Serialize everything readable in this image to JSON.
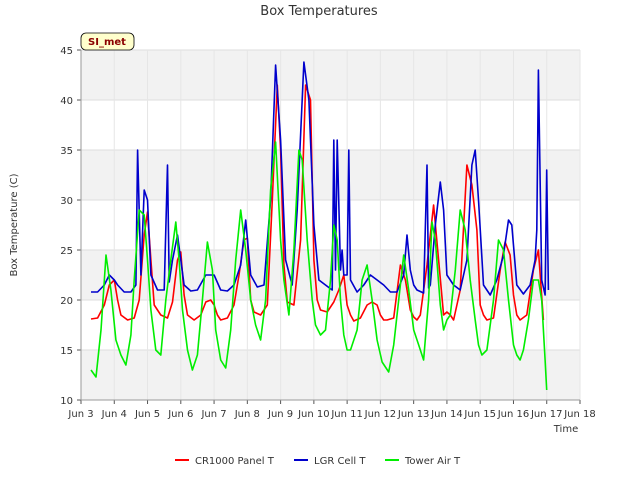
{
  "chart_data": {
    "type": "line",
    "title": "Box Temperatures",
    "xlabel": "Time",
    "ylabel": "Box Temperature (C)",
    "site_tag": "SI_met",
    "xlim": [
      3,
      18
    ],
    "ylim": [
      10,
      45
    ],
    "x_ticks": [
      3,
      4,
      5,
      6,
      7,
      8,
      9,
      10,
      11,
      12,
      13,
      14,
      15,
      16,
      17,
      18
    ],
    "x_tick_labels": [
      "Jun 3",
      "Jun 4",
      "Jun 5",
      "Jun 6",
      "Jun 7",
      "Jun 8",
      "Jun 9",
      "Jun 10",
      "Jun 11",
      "Jun 12",
      "Jun 13",
      "Jun 14",
      "Jun 15",
      "Jun 16",
      "Jun 17",
      "Jun 18"
    ],
    "y_ticks": [
      10,
      15,
      20,
      25,
      30,
      35,
      40,
      45
    ],
    "y_tick_labels": [
      "10",
      "15",
      "20",
      "25",
      "30",
      "35",
      "40",
      "45"
    ],
    "grid": true,
    "legend_position": "bottom-center",
    "series": [
      {
        "name": "CR1000 Panel T",
        "color": "#ff0000",
        "x": [
          3.3,
          3.5,
          3.7,
          3.85,
          4.0,
          4.1,
          4.2,
          4.4,
          4.6,
          4.75,
          4.9,
          5.0,
          5.1,
          5.2,
          5.4,
          5.6,
          5.75,
          5.9,
          6.0,
          6.1,
          6.2,
          6.4,
          6.6,
          6.75,
          6.9,
          7.0,
          7.1,
          7.2,
          7.4,
          7.6,
          7.75,
          7.9,
          8.0,
          8.1,
          8.2,
          8.4,
          8.6,
          8.75,
          8.9,
          9.0,
          9.1,
          9.2,
          9.4,
          9.6,
          9.75,
          9.9,
          10.0,
          10.1,
          10.2,
          10.4,
          10.6,
          10.75,
          10.9,
          11.0,
          11.1,
          11.2,
          11.4,
          11.6,
          11.75,
          11.9,
          12.0,
          12.1,
          12.2,
          12.4,
          12.6,
          12.75,
          12.9,
          13.0,
          13.1,
          13.2,
          13.4,
          13.6,
          13.75,
          13.9,
          14.0,
          14.1,
          14.2,
          14.4,
          14.6,
          14.75,
          14.9,
          15.0,
          15.1,
          15.2,
          15.4,
          15.6,
          15.75,
          15.9,
          16.0,
          16.1,
          16.2,
          16.4,
          16.6,
          16.75,
          16.9
        ],
        "values": [
          18.1,
          18.2,
          19.5,
          21.5,
          22.0,
          20.0,
          18.5,
          18.0,
          18.2,
          20.0,
          26.5,
          28.8,
          24.0,
          19.5,
          18.5,
          18.2,
          19.8,
          24.0,
          24.8,
          20.5,
          18.5,
          18.0,
          18.5,
          19.8,
          20.0,
          19.5,
          18.5,
          18.0,
          18.2,
          19.5,
          22.5,
          26.0,
          26.2,
          20.0,
          18.8,
          18.5,
          19.5,
          30.0,
          41.5,
          35.0,
          23.5,
          19.8,
          19.5,
          26.0,
          41.5,
          40.0,
          24.0,
          20.0,
          19.0,
          18.8,
          19.8,
          21.0,
          22.5,
          19.5,
          18.5,
          17.9,
          18.2,
          19.5,
          19.8,
          19.5,
          18.5,
          18.0,
          18.0,
          18.2,
          23.5,
          22.0,
          19.0,
          18.3,
          18.0,
          18.5,
          23.5,
          29.5,
          24.0,
          18.5,
          18.8,
          18.5,
          18.0,
          21.0,
          33.5,
          31.5,
          27.0,
          19.5,
          18.5,
          18.0,
          18.2,
          23.0,
          25.8,
          24.5,
          20.5,
          18.5,
          18.0,
          18.5,
          23.0,
          25.0,
          18.0
        ]
      },
      {
        "name": "LGR Cell T",
        "color": "#0000cc",
        "x": [
          3.3,
          3.5,
          3.7,
          3.85,
          4.0,
          4.1,
          4.3,
          4.5,
          4.65,
          4.7,
          4.8,
          4.9,
          5.0,
          5.1,
          5.3,
          5.5,
          5.6,
          5.65,
          5.75,
          5.9,
          6.0,
          6.1,
          6.3,
          6.5,
          6.75,
          7.0,
          7.2,
          7.4,
          7.6,
          7.8,
          7.95,
          8.1,
          8.3,
          8.5,
          8.7,
          8.85,
          9.0,
          9.15,
          9.35,
          9.5,
          9.7,
          9.85,
          10.0,
          10.15,
          10.35,
          10.55,
          10.6,
          10.65,
          10.7,
          10.8,
          10.85,
          10.9,
          11.0,
          11.05,
          11.1,
          11.3,
          11.5,
          11.7,
          11.9,
          12.1,
          12.3,
          12.5,
          12.7,
          12.8,
          12.9,
          13.0,
          13.1,
          13.3,
          13.4,
          13.45,
          13.5,
          13.65,
          13.8,
          13.9,
          14.0,
          14.2,
          14.4,
          14.6,
          14.75,
          14.85,
          14.95,
          15.1,
          15.3,
          15.5,
          15.7,
          15.85,
          15.95,
          16.1,
          16.3,
          16.5,
          16.65,
          16.7,
          16.75,
          16.85,
          16.95,
          17.0,
          17.05
        ],
        "values": [
          20.8,
          20.8,
          21.5,
          22.5,
          22.0,
          21.5,
          20.8,
          20.8,
          21.5,
          35.0,
          22.5,
          31.0,
          30.0,
          22.5,
          21.0,
          21.0,
          33.5,
          21.8,
          24.0,
          26.5,
          24.0,
          21.5,
          20.9,
          21.0,
          22.5,
          22.5,
          21.0,
          20.9,
          21.5,
          23.5,
          28.0,
          22.5,
          21.3,
          21.5,
          30.0,
          43.5,
          36.0,
          24.0,
          21.5,
          29.0,
          43.8,
          40.0,
          27.5,
          22.0,
          21.5,
          21.0,
          36.0,
          23.0,
          36.0,
          23.0,
          25.0,
          22.5,
          22.5,
          35.0,
          22.0,
          20.8,
          21.5,
          22.5,
          22.0,
          21.5,
          20.8,
          20.8,
          22.5,
          26.5,
          23.0,
          21.5,
          21.0,
          20.7,
          33.5,
          21.2,
          21.5,
          27.5,
          31.8,
          29.0,
          22.5,
          21.5,
          21.0,
          24.0,
          33.5,
          35.0,
          30.0,
          21.5,
          20.5,
          22.0,
          24.5,
          28.0,
          27.5,
          21.5,
          20.6,
          21.5,
          24.0,
          27.0,
          43.0,
          22.0,
          20.5,
          33.0,
          21.0
        ]
      },
      {
        "name": "Tower Air T",
        "color": "#00ee00",
        "x": [
          3.3,
          3.45,
          3.6,
          3.75,
          3.9,
          4.05,
          4.2,
          4.35,
          4.5,
          4.6,
          4.75,
          4.9,
          5.0,
          5.1,
          5.25,
          5.4,
          5.55,
          5.7,
          5.85,
          5.95,
          6.05,
          6.2,
          6.35,
          6.5,
          6.65,
          6.8,
          6.95,
          7.05,
          7.2,
          7.35,
          7.5,
          7.65,
          7.8,
          7.95,
          8.1,
          8.25,
          8.4,
          8.55,
          8.7,
          8.85,
          9.0,
          9.1,
          9.25,
          9.4,
          9.55,
          9.65,
          9.8,
          9.95,
          10.05,
          10.2,
          10.35,
          10.5,
          10.6,
          10.7,
          10.8,
          10.9,
          11.0,
          11.1,
          11.3,
          11.45,
          11.6,
          11.75,
          11.9,
          12.05,
          12.25,
          12.4,
          12.55,
          12.7,
          12.85,
          13.0,
          13.15,
          13.3,
          13.45,
          13.55,
          13.65,
          13.8,
          13.9,
          14.0,
          14.1,
          14.25,
          14.4,
          14.55,
          14.7,
          14.85,
          14.95,
          15.05,
          15.2,
          15.4,
          15.55,
          15.7,
          15.85,
          16.0,
          16.1,
          16.2,
          16.3,
          16.45,
          16.6,
          16.75,
          16.85,
          16.95,
          17.0
        ],
        "values": [
          13.0,
          12.3,
          17.0,
          24.5,
          21.0,
          16.0,
          14.5,
          13.5,
          16.5,
          22.0,
          29.0,
          28.5,
          24.0,
          19.0,
          15.0,
          14.5,
          20.0,
          24.0,
          27.8,
          24.0,
          19.0,
          15.0,
          13.0,
          14.5,
          20.0,
          25.8,
          23.0,
          17.0,
          14.0,
          13.2,
          17.0,
          24.0,
          29.0,
          25.0,
          20.0,
          17.5,
          16.0,
          20.0,
          31.0,
          35.8,
          26.0,
          22.0,
          18.5,
          25.0,
          35.0,
          34.0,
          26.0,
          20.0,
          17.5,
          16.5,
          17.0,
          22.0,
          27.5,
          26.0,
          20.0,
          16.5,
          15.0,
          15.0,
          17.0,
          22.0,
          23.5,
          20.0,
          16.0,
          13.8,
          12.8,
          15.5,
          20.0,
          24.5,
          21.0,
          17.0,
          15.5,
          14.0,
          20.0,
          27.8,
          26.0,
          19.5,
          17.0,
          18.0,
          18.5,
          23.0,
          29.0,
          27.0,
          22.0,
          18.0,
          15.5,
          14.5,
          15.0,
          20.0,
          26.0,
          25.0,
          20.0,
          15.5,
          14.5,
          14.0,
          15.0,
          18.0,
          22.0,
          22.0,
          20.0,
          14.0,
          11.0
        ]
      }
    ]
  }
}
